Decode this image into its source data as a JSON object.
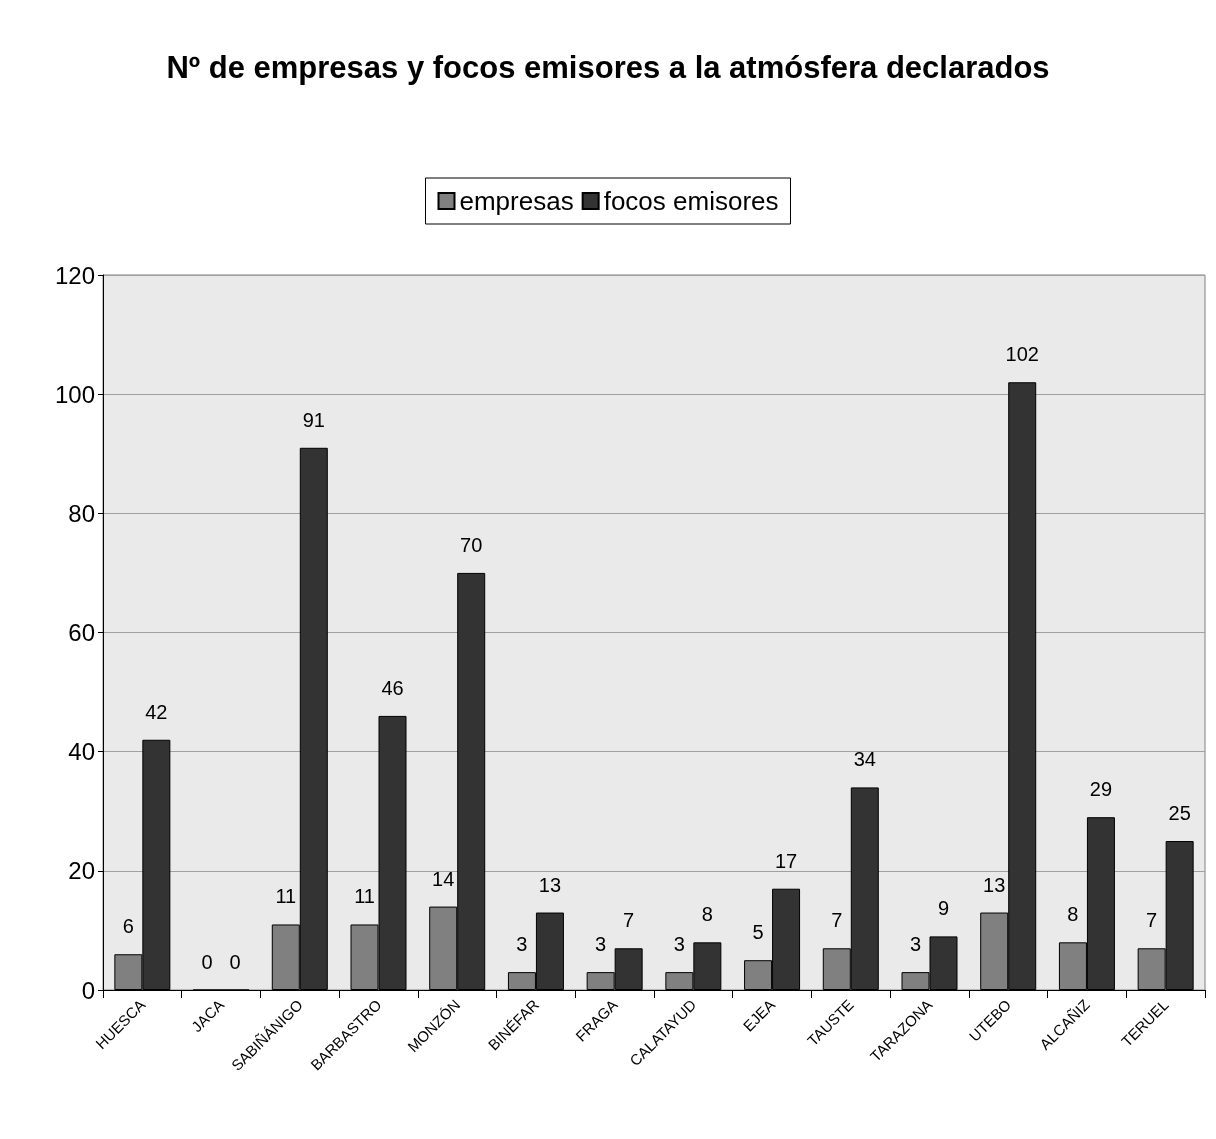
{
  "chart_data": {
    "type": "bar",
    "title": "Nº de empresas y focos emisores a la atmósfera declarados",
    "categories": [
      "HUESCA",
      "JACA",
      "SABIÑÁNIGO",
      "BARBASTRO",
      "MONZÓN",
      "BINÉFAR",
      "FRAGA",
      "CALATAYUD",
      "EJEA",
      "TAUSTE",
      "TARAZONA",
      "UTEBO",
      "ALCAÑIZ",
      "TERUEL"
    ],
    "series": [
      {
        "name": "empresas",
        "color": "#808080",
        "values": [
          6,
          0,
          11,
          11,
          14,
          3,
          3,
          3,
          5,
          7,
          3,
          13,
          8,
          7
        ]
      },
      {
        "name": "focos emisores",
        "color": "#333333",
        "values": [
          42,
          0,
          91,
          46,
          70,
          13,
          7,
          8,
          17,
          34,
          9,
          102,
          29,
          25
        ]
      }
    ],
    "ylim": [
      0,
      120
    ],
    "yticks": [
      0,
      20,
      40,
      60,
      80,
      100,
      120
    ],
    "grid": "y",
    "legend": "top",
    "data_labels": true
  }
}
